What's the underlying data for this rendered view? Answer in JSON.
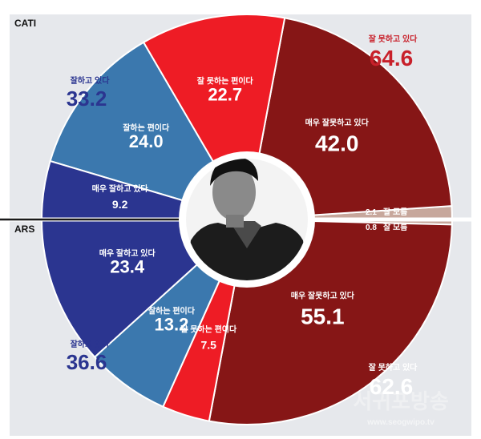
{
  "chart_data": {
    "type": "pie",
    "title": "",
    "colors": {
      "strong_positive": "#2b3590",
      "positive": "#3b78ae",
      "negative": "#ee1c25",
      "strong_negative": "#861616",
      "unsure": "#c7a79c",
      "total_positive_text": "#2b3590",
      "total_negative_text": "#c8202a"
    },
    "halves": [
      {
        "method": "CATI",
        "slices": [
          {
            "label": "매우 잘못하고 있다",
            "value": "42.0",
            "color": "#861616"
          },
          {
            "label": "잘 못하는 편이다",
            "value": "22.7",
            "color": "#ee1c25"
          },
          {
            "label": "잘하는 편이다",
            "value": "24.0",
            "color": "#3b78ae"
          },
          {
            "label": "매우 잘하고 있다",
            "value": "9.2",
            "color": "#2b3590"
          },
          {
            "label": "잘 모름",
            "value": "2.1",
            "color": "#c7a79c"
          }
        ],
        "totals": {
          "positive": {
            "label": "잘하고 있다",
            "value": "33.2"
          },
          "negative": {
            "label": "잘 못하고 있다",
            "value": "64.6"
          }
        }
      },
      {
        "method": "ARS",
        "slices": [
          {
            "label": "매우 잘못하고 있다",
            "value": "55.1",
            "color": "#861616"
          },
          {
            "label": "잘 못하는 편이다",
            "value": "7.5",
            "color": "#ee1c25"
          },
          {
            "label": "잘하는 편이다",
            "value": "13.2",
            "color": "#3b78ae"
          },
          {
            "label": "매우 잘하고 있다",
            "value": "23.4",
            "color": "#2b3590"
          },
          {
            "label": "잘 모름",
            "value": "0.8",
            "color": "#c7a79c"
          }
        ],
        "totals": {
          "positive": {
            "label": "잘하고 있다",
            "value": "36.6"
          },
          "negative": {
            "label": "잘 못하고 있다",
            "value": "62.6"
          }
        }
      }
    ]
  },
  "watermark": {
    "name": "서귀포방송",
    "url": "www.seogwipo.tv"
  },
  "photo": {
    "icon": "person-portrait-icon"
  }
}
